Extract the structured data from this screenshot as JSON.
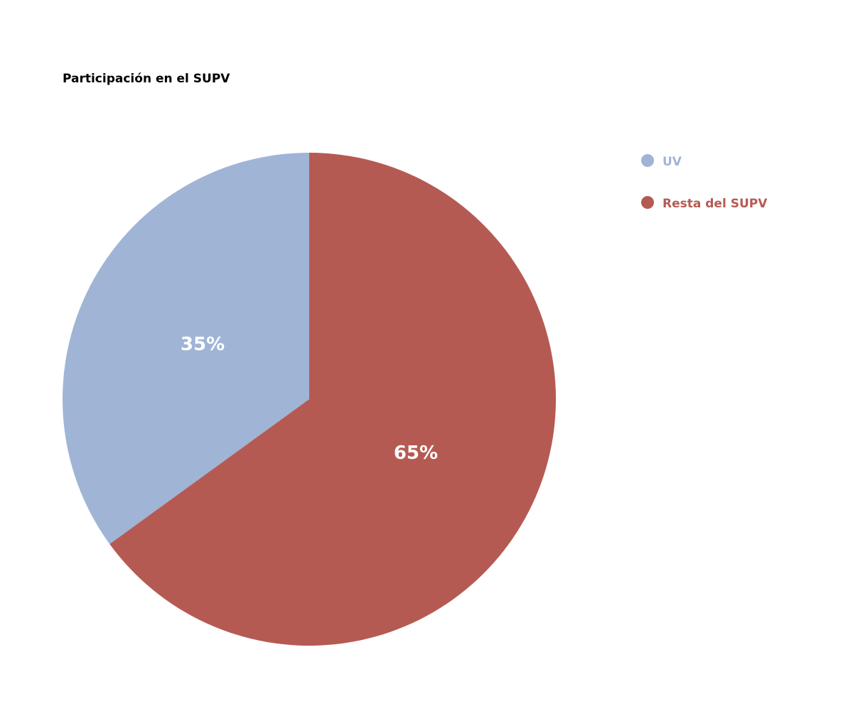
{
  "chart_data": {
    "type": "pie",
    "title": "Participación en el SUPV",
    "categories": [
      "UV",
      "Resta del SUPV"
    ],
    "values": [
      35,
      65
    ],
    "value_labels": [
      "35%",
      "65%"
    ],
    "colors": [
      "#a0b4d6",
      "#b55a53"
    ],
    "legend": "top-right"
  }
}
